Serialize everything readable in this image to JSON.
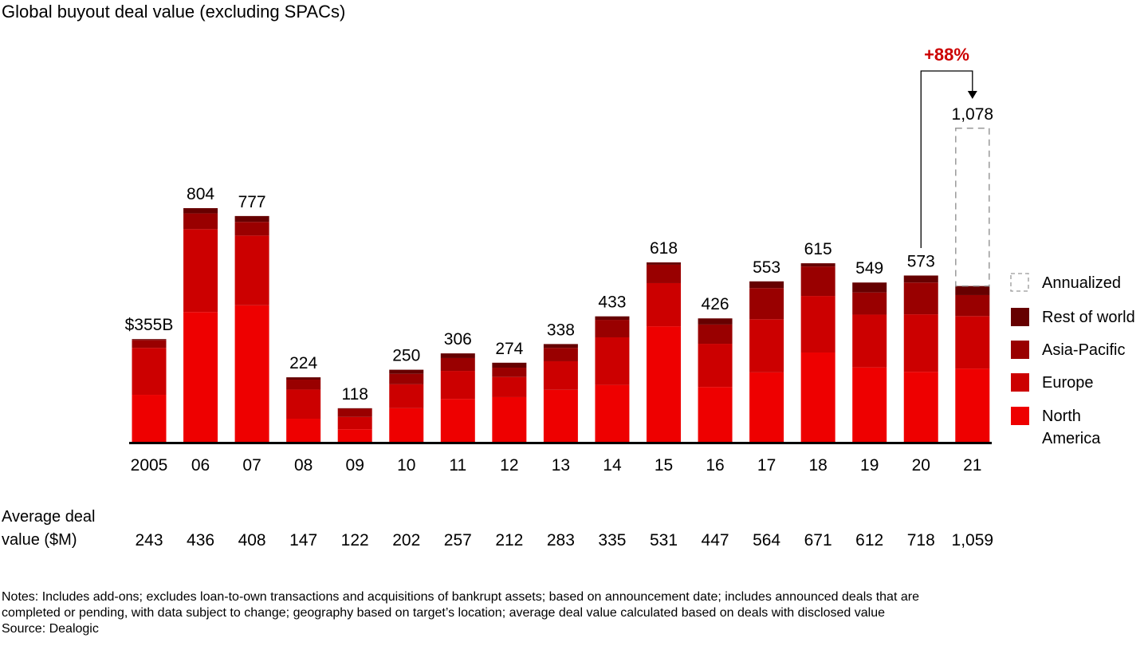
{
  "chart_data": {
    "type": "bar",
    "stacked": true,
    "title": "Global buyout deal value (excluding SPACs)",
    "unit_label": "$B",
    "categories": [
      "2005",
      "06",
      "07",
      "08",
      "09",
      "10",
      "11",
      "12",
      "13",
      "14",
      "15",
      "16",
      "17",
      "18",
      "19",
      "20",
      "21"
    ],
    "totals": [
      355,
      804,
      777,
      224,
      118,
      250,
      306,
      274,
      338,
      433,
      618,
      426,
      553,
      615,
      549,
      573,
      1078
    ],
    "total_labels": [
      "$355B",
      "804",
      "777",
      "224",
      "118",
      "250",
      "306",
      "274",
      "338",
      "433",
      "618",
      "426",
      "553",
      "615",
      "549",
      "573",
      "1,078"
    ],
    "series": [
      {
        "name": "North America",
        "color": "#EE0000",
        "values": [
          164,
          448,
          471,
          82,
          46,
          118,
          150,
          156,
          181,
          198,
          399,
          191,
          241,
          309,
          258,
          243,
          254
        ]
      },
      {
        "name": "Europe",
        "color": "#CC0000",
        "values": [
          161,
          284,
          239,
          100,
          42,
          82,
          96,
          69,
          98,
          163,
          148,
          148,
          182,
          194,
          181,
          197,
          180
        ]
      },
      {
        "name": "Asia-Pacific",
        "color": "#990000",
        "values": [
          27,
          54,
          47,
          34,
          28,
          36,
          44,
          32,
          46,
          60,
          63,
          66,
          107,
          101,
          76,
          109,
          72
        ]
      },
      {
        "name": "Rest of world",
        "color": "#660000",
        "values": [
          3,
          18,
          20,
          8,
          2,
          14,
          16,
          17,
          13,
          12,
          8,
          21,
          23,
          11,
          34,
          24,
          31
        ]
      }
    ],
    "annualized": {
      "category": "21",
      "value": 1078,
      "label": "Annualized"
    },
    "annotation": {
      "text": "+88%",
      "from": "20",
      "to": "21",
      "color": "#CC0000"
    },
    "legend": [
      "Annualized",
      "Rest of world",
      "Asia-Pacific",
      "Europe",
      "North America"
    ],
    "legend_position": "right",
    "ylim": [
      0,
      1100
    ],
    "grid": false,
    "xlabel": "",
    "ylabel": "",
    "average_deal_value": {
      "label": "Average deal value ($M)",
      "values": [
        "243",
        "436",
        "408",
        "147",
        "122",
        "202",
        "257",
        "212",
        "283",
        "335",
        "531",
        "447",
        "564",
        "671",
        "612",
        "718",
        "1,059"
      ]
    }
  },
  "labels": {
    "avg_line1": "Average deal",
    "avg_line2": "value ($M)",
    "legend_na_line1": "North",
    "legend_na_line2": "America"
  },
  "notes": {
    "line1": "Notes: Includes add-ons; excludes loan-to-own transactions and acquisitions of bankrupt assets; based on announcement date; includes announced deals that are",
    "line2": "completed or pending, with data subject to change; geography based on target’s location; average deal value calculated based on deals with disclosed value",
    "source": "Source: Dealogic"
  }
}
